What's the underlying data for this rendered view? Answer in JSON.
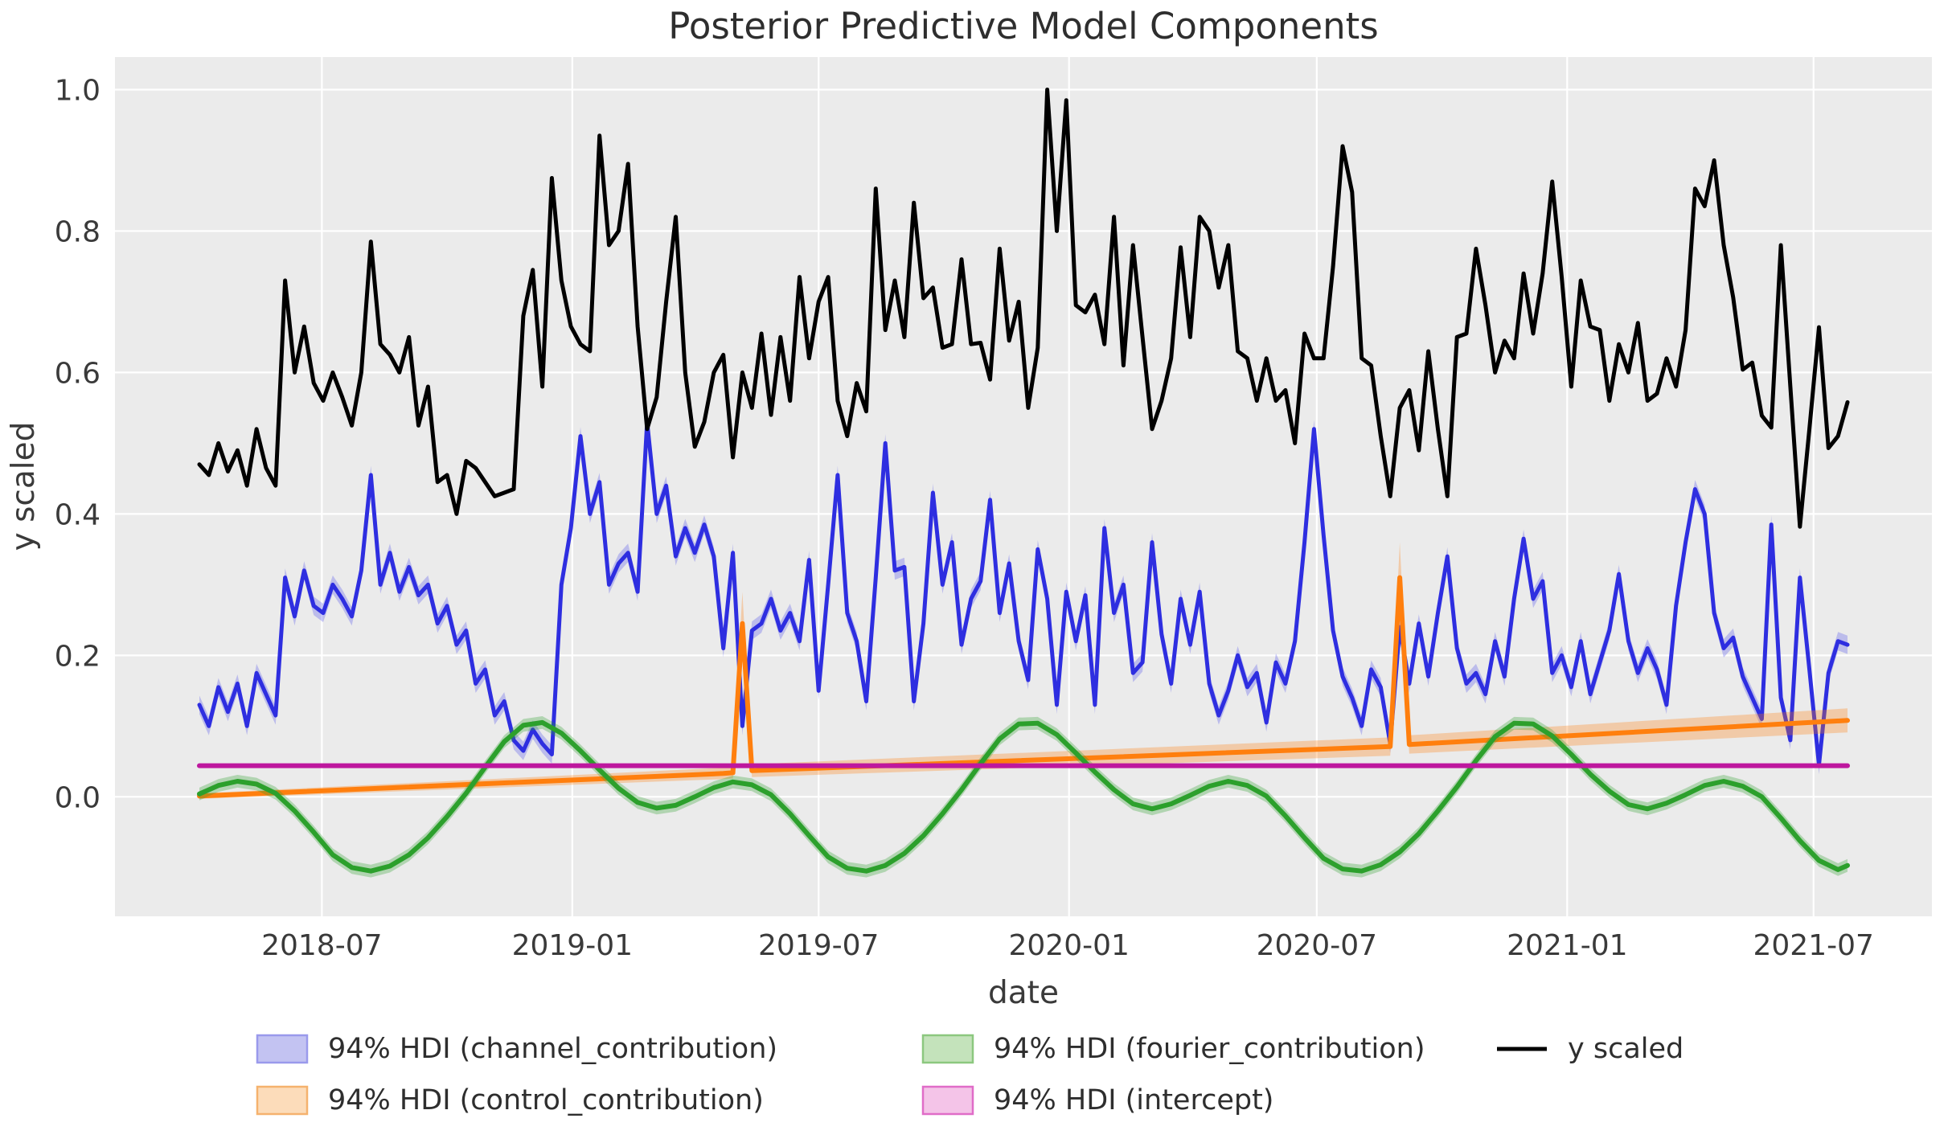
{
  "title": "Posterior Predictive Model Components",
  "xlabel": "date",
  "ylabel": "y scaled",
  "colors": {
    "background_plot": "#ebebeb",
    "background_fig": "#ffffff",
    "grid": "#ffffff",
    "y_scaled_line": "#000000",
    "channel_line": "#2e2ee0",
    "channel_band": "rgba(90,90,235,0.32)",
    "control_line": "#ff7f0e",
    "control_band": "rgba(255,127,14,0.30)",
    "fourier_line": "#2ca02c",
    "fourier_band": "rgba(44,160,44,0.30)",
    "intercept_line": "#be189e",
    "intercept_band": "rgba(231,120,212,0.45)"
  },
  "legend": [
    {
      "label": "94% HDI (channel_contribution)",
      "type": "patch",
      "fill": "#c3c3f2",
      "edge": "#9a9aec"
    },
    {
      "label": "94% HDI (control_contribution)",
      "type": "patch",
      "fill": "#fcdcba",
      "edge": "#f5b26e"
    },
    {
      "label": "94% HDI (fourier_contribution)",
      "type": "patch",
      "fill": "#c4e3bb",
      "edge": "#8cc87f"
    },
    {
      "label": "94% HDI (intercept)",
      "type": "patch",
      "fill": "#f4c4e8",
      "edge": "#e06cc8"
    },
    {
      "label": "y scaled",
      "type": "line",
      "stroke": "#000000"
    }
  ],
  "chart_data": {
    "type": "line",
    "title": "Posterior Predictive Model Components",
    "xlabel": "date",
    "ylabel": "y scaled",
    "x_tick_labels": [
      "2018-07",
      "2019-01",
      "2019-07",
      "2020-01",
      "2020-07",
      "2021-01",
      "2021-07"
    ],
    "x_tick_day_offsets": [
      90,
      274,
      455,
      639,
      821,
      1005,
      1186
    ],
    "y_ticks": [
      0.0,
      0.2,
      0.4,
      0.6,
      0.8,
      1.0
    ],
    "ylim": [
      -0.169,
      1.046
    ],
    "xlim_day_offsets": [
      -62,
      1273
    ],
    "start_date": "2018-04-02",
    "step_days": 7,
    "grid": true,
    "legend_position": "bottom",
    "series": [
      {
        "name": "y scaled",
        "kind": "line",
        "values": [
          0.47,
          0.455,
          0.5,
          0.46,
          0.49,
          0.44,
          0.52,
          0.465,
          0.44,
          0.73,
          0.6,
          0.665,
          0.585,
          0.56,
          0.6,
          0.565,
          0.525,
          0.6,
          0.785,
          0.64,
          0.625,
          0.6,
          0.65,
          0.525,
          0.58,
          0.445,
          0.455,
          0.4,
          0.475,
          0.465,
          0.445,
          0.425,
          0.43,
          0.435,
          0.68,
          0.745,
          0.58,
          0.875,
          0.73,
          0.665,
          0.64,
          0.63,
          0.935,
          0.78,
          0.8,
          0.895,
          0.665,
          0.52,
          0.565,
          0.7,
          0.82,
          0.6,
          0.495,
          0.53,
          0.6,
          0.625,
          0.48,
          0.6,
          0.55,
          0.655,
          0.54,
          0.65,
          0.56,
          0.735,
          0.62,
          0.7,
          0.735,
          0.56,
          0.51,
          0.585,
          0.545,
          0.86,
          0.66,
          0.73,
          0.65,
          0.84,
          0.705,
          0.72,
          0.635,
          0.64,
          0.76,
          0.64,
          0.642,
          0.59,
          0.775,
          0.645,
          0.7,
          0.55,
          0.635,
          1.0,
          0.8,
          0.985,
          0.695,
          0.685,
          0.71,
          0.64,
          0.82,
          0.61,
          0.78,
          0.65,
          0.52,
          0.56,
          0.62,
          0.777,
          0.65,
          0.82,
          0.8,
          0.72,
          0.78,
          0.63,
          0.62,
          0.56,
          0.62,
          0.56,
          0.575,
          0.5,
          0.655,
          0.62,
          0.62,
          0.75,
          0.92,
          0.855,
          0.62,
          0.61,
          0.51,
          0.425,
          0.55,
          0.575,
          0.49,
          0.63,
          0.52,
          0.425,
          0.65,
          0.655,
          0.775,
          0.695,
          0.6,
          0.645,
          0.62,
          0.74,
          0.655,
          0.74,
          0.87,
          0.735,
          0.58,
          0.73,
          0.665,
          0.66,
          0.56,
          0.64,
          0.6,
          0.67,
          0.56,
          0.57,
          0.62,
          0.58,
          0.66,
          0.86,
          0.835,
          0.9,
          0.78,
          0.706,
          0.604,
          0.614,
          0.539,
          0.522,
          0.78,
          0.58,
          0.382,
          0.52,
          0.664,
          0.493,
          0.51,
          0.558
        ]
      },
      {
        "name": "channel_contribution",
        "kind": "line+band",
        "band_halfwidth": 0.013,
        "values": [
          0.13,
          0.1,
          0.155,
          0.12,
          0.16,
          0.1,
          0.175,
          0.145,
          0.115,
          0.31,
          0.255,
          0.32,
          0.27,
          0.26,
          0.3,
          0.28,
          0.255,
          0.32,
          0.455,
          0.3,
          0.345,
          0.29,
          0.325,
          0.285,
          0.3,
          0.245,
          0.27,
          0.215,
          0.235,
          0.16,
          0.18,
          0.115,
          0.135,
          0.08,
          0.065,
          0.095,
          0.075,
          0.06,
          0.3,
          0.38,
          0.51,
          0.4,
          0.445,
          0.3,
          0.33,
          0.345,
          0.29,
          0.53,
          0.4,
          0.44,
          0.34,
          0.38,
          0.345,
          0.385,
          0.34,
          0.21,
          0.345,
          0.1,
          0.235,
          0.245,
          0.28,
          0.235,
          0.26,
          0.22,
          0.335,
          0.15,
          0.3,
          0.455,
          0.26,
          0.22,
          0.135,
          0.31,
          0.5,
          0.32,
          0.325,
          0.135,
          0.245,
          0.43,
          0.3,
          0.36,
          0.215,
          0.28,
          0.305,
          0.42,
          0.26,
          0.33,
          0.22,
          0.165,
          0.35,
          0.28,
          0.13,
          0.29,
          0.22,
          0.285,
          0.13,
          0.38,
          0.26,
          0.3,
          0.175,
          0.19,
          0.36,
          0.23,
          0.16,
          0.28,
          0.215,
          0.29,
          0.16,
          0.115,
          0.15,
          0.2,
          0.155,
          0.175,
          0.105,
          0.19,
          0.16,
          0.22,
          0.36,
          0.52,
          0.37,
          0.235,
          0.17,
          0.14,
          0.1,
          0.18,
          0.155,
          0.075,
          0.24,
          0.16,
          0.245,
          0.17,
          0.26,
          0.34,
          0.21,
          0.16,
          0.175,
          0.145,
          0.22,
          0.17,
          0.28,
          0.365,
          0.28,
          0.305,
          0.175,
          0.2,
          0.155,
          0.22,
          0.145,
          0.19,
          0.235,
          0.315,
          0.22,
          0.175,
          0.21,
          0.18,
          0.13,
          0.27,
          0.36,
          0.435,
          0.4,
          0.26,
          0.21,
          0.225,
          0.17,
          0.14,
          0.11,
          0.385,
          0.14,
          0.08,
          0.31,
          0.18,
          0.045,
          0.175,
          0.22,
          0.215
        ]
      },
      {
        "name": "fourier_contribution",
        "kind": "line+band",
        "band_halfwidth": 0.009,
        "day_offsets": [
          0,
          14,
          28,
          42,
          56,
          70,
          84,
          98,
          112,
          126,
          140,
          154,
          168,
          182,
          196,
          210,
          224,
          238,
          252,
          266,
          280,
          294,
          308,
          322,
          336,
          350,
          364,
          378,
          392,
          406,
          420,
          434,
          448,
          462,
          476,
          490,
          504,
          518,
          532,
          546,
          560,
          574,
          588,
          602,
          616,
          630,
          644,
          658,
          672,
          686,
          700,
          714,
          728,
          742,
          756,
          770,
          784,
          798,
          812,
          826,
          840,
          854,
          868,
          882,
          896,
          910,
          924,
          938,
          952,
          966,
          980,
          994,
          1008,
          1022,
          1036,
          1050,
          1064,
          1078,
          1092,
          1106,
          1120,
          1134,
          1148,
          1162,
          1176,
          1190,
          1204,
          1211
        ],
        "values": [
          0.004,
          0.016,
          0.022,
          0.018,
          0.005,
          -0.02,
          -0.05,
          -0.082,
          -0.1,
          -0.105,
          -0.098,
          -0.082,
          -0.058,
          -0.028,
          0.005,
          0.042,
          0.078,
          0.101,
          0.105,
          0.09,
          0.065,
          0.038,
          0.012,
          -0.008,
          -0.016,
          -0.012,
          0.0,
          0.013,
          0.021,
          0.017,
          0.003,
          -0.024,
          -0.055,
          -0.085,
          -0.101,
          -0.105,
          -0.097,
          -0.08,
          -0.055,
          -0.024,
          0.01,
          0.047,
          0.082,
          0.103,
          0.104,
          0.088,
          0.062,
          0.035,
          0.01,
          -0.01,
          -0.017,
          -0.01,
          0.002,
          0.015,
          0.022,
          0.016,
          0.001,
          -0.027,
          -0.058,
          -0.087,
          -0.102,
          -0.105,
          -0.096,
          -0.078,
          -0.052,
          -0.02,
          0.014,
          0.051,
          0.085,
          0.104,
          0.103,
          0.086,
          0.06,
          0.032,
          0.008,
          -0.011,
          -0.017,
          -0.009,
          0.003,
          0.016,
          0.022,
          0.015,
          0.0,
          -0.03,
          -0.062,
          -0.09,
          -0.103,
          -0.097
        ]
      },
      {
        "name": "control_contribution",
        "kind": "line+band",
        "day_offsets": [
          0,
          385,
          392,
          399,
          406,
          875,
          882,
          889,
          1211
        ],
        "values": [
          0.001,
          0.033,
          0.034,
          0.245,
          0.037,
          0.071,
          0.31,
          0.074,
          0.108
        ],
        "band_halfwidths": [
          0.004,
          0.008,
          0.008,
          0.045,
          0.009,
          0.013,
          0.05,
          0.013,
          0.017
        ]
      },
      {
        "name": "intercept",
        "kind": "line+band",
        "day_offsets": [
          0,
          1211
        ],
        "values": [
          0.044,
          0.044
        ],
        "band_halfwidths": [
          0.003,
          0.003
        ]
      }
    ]
  }
}
